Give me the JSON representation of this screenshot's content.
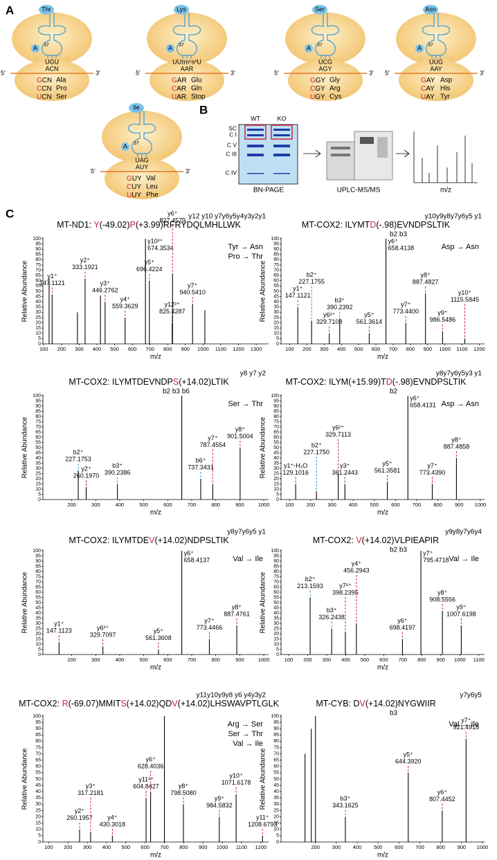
{
  "panel_labels": {
    "a": "A",
    "b": "B",
    "c": "C"
  },
  "ribosome_labels": {
    "a_site": "A",
    "position": "37",
    "five": "5′",
    "three": "3′"
  },
  "ribosomes": [
    {
      "aa": "Thr",
      "anticodon": [
        "UGU",
        "ACN"
      ],
      "codons": [
        {
          "first": "G",
          "rest": "CN",
          "aa": "Ala"
        },
        {
          "first": "C",
          "rest": "CN",
          "aa": "Pro"
        },
        {
          "first": "U",
          "rest": "CN",
          "aa": "Ser"
        }
      ]
    },
    {
      "aa": "Lys",
      "anticodon": [
        "UUτm⁵s²U",
        "AAR"
      ],
      "codons": [
        {
          "first": "G",
          "rest": "AR",
          "aa": "Glu"
        },
        {
          "first": "C",
          "rest": "AR",
          "aa": "Gln"
        },
        {
          "first": "U",
          "rest": "AR",
          "aa": "Stop"
        }
      ]
    },
    {
      "aa": "Ser",
      "anticodon": [
        "UCG",
        "AGY"
      ],
      "codons": [
        {
          "first": "G",
          "rest": "GY",
          "aa": "Gly"
        },
        {
          "first": "C",
          "rest": "GY",
          "aa": "Arg"
        },
        {
          "first": "U",
          "rest": "GY",
          "aa": "Cys"
        }
      ]
    },
    {
      "aa": "Asn",
      "anticodon": [
        "UUG",
        "AAY"
      ],
      "codons": [
        {
          "first": "G",
          "rest": "AY",
          "aa": "Asp"
        },
        {
          "first": "C",
          "rest": "AY",
          "aa": "His"
        },
        {
          "first": "U",
          "rest": "AY",
          "aa": "Tyr"
        }
      ]
    },
    {
      "aa": "Ile",
      "anticodon": [
        "UAG",
        "AUY"
      ],
      "codons": [
        {
          "first": "G",
          "rest": "UY",
          "aa": "Val"
        },
        {
          "first": "C",
          "rest": "UY",
          "aa": "Leu"
        },
        {
          "first": "U",
          "rest": "UY",
          "aa": "Phe"
        }
      ]
    }
  ],
  "workflow": {
    "wt": "WT",
    "ko": "KO",
    "bands": [
      "SC",
      "C I",
      "C V",
      "C III",
      "C IV"
    ],
    "gel": "BN-PAGE",
    "instrument": "UPLC-MS/MS",
    "spectrum": "m/z"
  },
  "axis": {
    "ylabel": "Relative Abundance",
    "xlabel": "m/z"
  },
  "colors": {
    "y": "#d2233c",
    "b": "#1e9fd6",
    "peak": "#000000"
  },
  "spectra": [
    {
      "title": [
        {
          "text": "MT-ND1: "
        },
        {
          "text": "Y",
          "red": true
        },
        {
          "text": "(-49.02)"
        },
        {
          "text": "P",
          "red": true
        },
        {
          "text": "(+3.99)RFRYDQLMHLLWK"
        }
      ],
      "y_ions": "y12 y10   y7y6y5y4y3y2y1",
      "mutations": [
        "Tyr → Asn",
        "Pro → Thr"
      ],
      "xlim": [
        95,
        1370
      ],
      "xticks": [
        100,
        200,
        300,
        400,
        500,
        600,
        700,
        800,
        900,
        1000,
        1100,
        1200,
        1300
      ],
      "ylim": [
        0,
        100
      ],
      "yticks": [
        0,
        5,
        10,
        15,
        20,
        25,
        30,
        35,
        40,
        45,
        50,
        55,
        60,
        65,
        70,
        75,
        80,
        85,
        90,
        95,
        100
      ],
      "peaks": [
        {
          "x": 130,
          "y": 62
        },
        {
          "x": 147.1121,
          "y": 47,
          "ion": "y1⁺",
          "x_label": "147.1121"
        },
        {
          "x": 290,
          "y": 30
        },
        {
          "x": 333.1921,
          "y": 62,
          "ion": "y2⁺",
          "x_label": "333.1921"
        },
        {
          "x": 420,
          "y": 46
        },
        {
          "x": 446.2762,
          "y": 40,
          "ion": "y3⁺",
          "x_label": "446.2762"
        },
        {
          "x": 559.3629,
          "y": 25,
          "ion": "y4⁺",
          "x_label": "559.3629"
        },
        {
          "x": 674.3534,
          "y": 100,
          "ion": "y10²⁺",
          "x_label": "674.3534"
        },
        {
          "x": 696.4224,
          "y": 60,
          "ion": "y5⁺",
          "x_label": "696.4224"
        },
        {
          "x": 825.4287,
          "y": 20,
          "ion": "y12²⁺",
          "x_label": "825.4287"
        },
        {
          "x": 827.4579,
          "y": 67,
          "ion": "y6⁺",
          "x_label": "827.4579"
        },
        {
          "x": 940.541,
          "y": 38,
          "ion": "y7⁺",
          "x_label": "940.5410"
        },
        {
          "x": 1010,
          "y": 32
        }
      ]
    },
    {
      "title": [
        {
          "text": "MT-COX2: ILYMT"
        },
        {
          "text": "D",
          "red": true
        },
        {
          "text": "(-.98)EVNDPSLTIK"
        }
      ],
      "y_ions": "y10y9y8y7y6y5      y1",
      "b_ions": "b2 b3",
      "mutations": [
        "Asp → Asn"
      ],
      "xlim": [
        50,
        1230
      ],
      "xticks": [
        100,
        200,
        300,
        400,
        500,
        600,
        700,
        800,
        900,
        1000,
        1100,
        1200
      ],
      "ylim": [
        0,
        100
      ],
      "yticks": [
        0,
        5,
        10,
        15,
        20,
        25,
        30,
        35,
        40,
        45,
        50,
        55,
        60,
        65,
        70,
        75,
        80,
        85,
        90,
        95,
        100
      ],
      "peaks": [
        {
          "x": 147.1121,
          "y": 35,
          "ion": "y1⁺",
          "x_label": "147.1121"
        },
        {
          "x": 227.1755,
          "y": 22,
          "ion": "b2⁺",
          "x_label": "227.1755"
        },
        {
          "x": 329.7108,
          "y": 10,
          "ion": "y6²⁺",
          "x_label": "329.7108"
        },
        {
          "x": 390.2392,
          "y": 24,
          "ion": "b3⁺",
          "x_label": "390.2392"
        },
        {
          "x": 561.3614,
          "y": 10,
          "ion": "y5⁺",
          "x_label": "561.3614"
        },
        {
          "x": 658.4138,
          "y": 100,
          "ion": "y6⁺",
          "x_label": "658.4138"
        },
        {
          "x": 773.44,
          "y": 20,
          "ion": "y7⁺",
          "x_label": "773.4400"
        },
        {
          "x": 887.4827,
          "y": 48,
          "ion": "y8⁺",
          "x_label": "887.4827"
        },
        {
          "x": 986.5486,
          "y": 12,
          "ion": "y9⁺",
          "x_label": "986.5486"
        },
        {
          "x": 1115.5845,
          "y": 5,
          "ion": "y10⁺",
          "x_label": "1115.5845"
        }
      ]
    },
    {
      "title": [
        {
          "text": "MT-COX2: ILYMTDEVNDP"
        },
        {
          "text": "S",
          "red": true
        },
        {
          "text": "(+14.02)LTIK"
        }
      ],
      "y_ions": "y8 y7          y2",
      "b_ions": "b2 b3      b6",
      "mutations": [
        "Ser → Thr"
      ],
      "xlim": [
        80,
        1020
      ],
      "xticks": [
        200,
        300,
        400,
        500,
        600,
        700,
        800,
        900,
        1000
      ],
      "ylim": [
        0,
        100
      ],
      "yticks": [
        0,
        5,
        10,
        15,
        20,
        25,
        30,
        35,
        40,
        45,
        50,
        55,
        60,
        65,
        70,
        75,
        80,
        85,
        90,
        95,
        100
      ],
      "peaks": [
        {
          "x": 227.1753,
          "y": 28,
          "ion": "b2⁺",
          "x_label": "227.1753"
        },
        {
          "x": 260.197,
          "y": 12,
          "ion": "y2⁺",
          "x_label": "260.1970"
        },
        {
          "x": 390.2386,
          "y": 15,
          "ion": "b3⁺",
          "x_label": "390.2386"
        },
        {
          "x": 658.4,
          "y": 100
        },
        {
          "x": 737.3431,
          "y": 20,
          "ion": "b6⁺",
          "x_label": "737.3431"
        },
        {
          "x": 787.4554,
          "y": 15,
          "ion": "y7⁺",
          "x_label": "787.4554"
        },
        {
          "x": 901.5004,
          "y": 50,
          "ion": "y8⁺",
          "x_label": "901.5004"
        }
      ]
    },
    {
      "title": [
        {
          "text": "MT-COX2: ILYM(+15.99)T"
        },
        {
          "text": "D",
          "red": true
        },
        {
          "text": "(-.98)EVNDPSLTIK"
        }
      ],
      "y_ions": "y8y7y6y5y3 y1",
      "b_ions": "b2",
      "mutations": [
        "Asp → Asn"
      ],
      "xlim": [
        60,
        1020
      ],
      "xticks": [
        100,
        200,
        300,
        400,
        500,
        600,
        700,
        800,
        900,
        1000
      ],
      "ylim": [
        0,
        100
      ],
      "yticks": [
        0,
        5,
        10,
        15,
        20,
        25,
        30,
        35,
        40,
        45,
        50,
        55,
        60,
        65,
        70,
        75,
        80,
        85,
        90,
        95,
        100
      ],
      "peaks": [
        {
          "x": 129.1016,
          "y": 15,
          "ion": "y1⁺-H₂O",
          "x_label": "129.1016"
        },
        {
          "x": 227.175,
          "y": 8,
          "ion": "b2⁺",
          "x_label": "227.1750"
        },
        {
          "x": 329.7113,
          "y": 25,
          "ion": "y6²⁺",
          "x_label": "329.7113"
        },
        {
          "x": 361.2443,
          "y": 15,
          "ion": "y3⁺",
          "x_label": "361.2443"
        },
        {
          "x": 561.3581,
          "y": 17,
          "ion": "y5⁺",
          "x_label": "561.3581"
        },
        {
          "x": 658.4131,
          "y": 100,
          "ion": "y6⁺",
          "x_label": "658.4131"
        },
        {
          "x": 773.439,
          "y": 15,
          "ion": "y7⁺",
          "x_label": "773.4390"
        },
        {
          "x": 887.4858,
          "y": 40,
          "ion": "y8⁺",
          "x_label": "887.4858"
        }
      ]
    },
    {
      "title": [
        {
          "text": "MT-COX2: ILYMTDE"
        },
        {
          "text": "V",
          "red": true
        },
        {
          "text": "(+14.02)NDPSLTIK"
        }
      ],
      "y_ions": "y8y7y6y5     y1",
      "mutations": [
        "Val → Ile"
      ],
      "xlim": [
        80,
        1020
      ],
      "xticks": [
        200,
        300,
        400,
        500,
        600,
        700,
        800,
        900,
        1000
      ],
      "ylim": [
        0,
        100
      ],
      "yticks": [
        0,
        5,
        10,
        15,
        20,
        25,
        30,
        35,
        40,
        45,
        50,
        55,
        60,
        65,
        70,
        75,
        80,
        85,
        90,
        95,
        100
      ],
      "peaks": [
        {
          "x": 147.1123,
          "y": 12,
          "ion": "y1⁺",
          "x_label": "147.1123"
        },
        {
          "x": 329.7097,
          "y": 8,
          "ion": "y6²⁺",
          "x_label": "329.7097"
        },
        {
          "x": 561.3608,
          "y": 5,
          "ion": "y5⁺",
          "x_label": "561.3608"
        },
        {
          "x": 658.4137,
          "y": 100,
          "ion": "y6⁺",
          "x_label": "658.4137"
        },
        {
          "x": 773.4466,
          "y": 15,
          "ion": "y7⁺",
          "x_label": "773.4466"
        },
        {
          "x": 887.4761,
          "y": 28,
          "ion": "y8⁺",
          "x_label": "887.4761"
        }
      ]
    },
    {
      "title": [
        {
          "text": "MT-COX2: "
        },
        {
          "text": "V",
          "red": true
        },
        {
          "text": "(+14.02)VLPIEAPIR"
        }
      ],
      "y_ions": "y9y8y7y6y4",
      "b_ions": "b2 b3",
      "mutations": [
        "Val → Ile"
      ],
      "xlim": [
        60,
        1130
      ],
      "xticks": [
        100,
        200,
        300,
        400,
        500,
        600,
        700,
        800,
        900,
        1000,
        1100
      ],
      "ylim": [
        0,
        100
      ],
      "yticks": [
        0,
        5,
        10,
        15,
        20,
        25,
        30,
        35,
        40,
        45,
        50,
        55,
        60,
        65,
        70,
        75,
        80,
        85,
        90,
        95,
        100
      ],
      "peaks": [
        {
          "x": 213.1593,
          "y": 55,
          "ion": "b2⁺",
          "x_label": "213.1593"
        },
        {
          "x": 326.2438,
          "y": 25,
          "ion": "b3⁺",
          "x_label": "326.2438"
        },
        {
          "x": 398.2395,
          "y": 22,
          "ion": "y7²⁺",
          "x_label": "398.2395"
        },
        {
          "x": 456.2943,
          "y": 30,
          "ion": "y4⁺",
          "x_label": "456.2943"
        },
        {
          "x": 698.4197,
          "y": 15,
          "ion": "y6⁺",
          "x_label": "698.4197"
        },
        {
          "x": 795.4718,
          "y": 100,
          "ion": "y7⁺",
          "x_label": "795.4718"
        },
        {
          "x": 908.5556,
          "y": 42,
          "ion": "y8⁺",
          "x_label": "908.5556"
        },
        {
          "x": 1007.6198,
          "y": 28,
          "ion": "y9⁺",
          "x_label": "1007.6198"
        }
      ]
    },
    {
      "title": [
        {
          "text": "MT-COX2: "
        },
        {
          "text": "R",
          "red": true
        },
        {
          "text": "(-69.07)MMIT"
        },
        {
          "text": "S",
          "red": true
        },
        {
          "text": "(+14.02)QD"
        },
        {
          "text": "V",
          "red": true
        },
        {
          "text": "(+14.02)LHSWAVPTLGLK"
        }
      ],
      "y_ions": "y11y10y9y8 y6  y4y3y2",
      "mutations": [
        "Arg → Ser",
        "Ser → Thr",
        "Val → Ile"
      ],
      "xlim": [
        70,
        1240
      ],
      "xticks": [
        100,
        200,
        300,
        400,
        500,
        600,
        700,
        800,
        900,
        1000,
        1100,
        1200
      ],
      "ylim": [
        0,
        100
      ],
      "yticks": [
        0,
        5,
        10,
        15,
        20,
        25,
        30,
        35,
        40,
        45,
        50,
        55,
        60,
        65,
        70,
        75,
        80,
        85,
        90,
        95,
        100
      ],
      "peaks": [
        {
          "x": 260.1957,
          "y": 10,
          "ion": "y2⁺",
          "x_label": "260.1957"
        },
        {
          "x": 317.2181,
          "y": 8,
          "ion": "y3⁺",
          "x_label": "317.2181"
        },
        {
          "x": 430.3018,
          "y": 5,
          "ion": "y4⁺",
          "x_label": "430.3018"
        },
        {
          "x": 604.8427,
          "y": 35,
          "ion": "y11²⁺",
          "x_label": "604.8427"
        },
        {
          "x": 628.4036,
          "y": 40,
          "ion": "y6⁺",
          "x_label": "628.4036"
        },
        {
          "x": 700,
          "y": 100
        },
        {
          "x": 798.508,
          "y": 30,
          "ion": "y8⁺",
          "x_label": "798.5080"
        },
        {
          "x": 984.5832,
          "y": 20,
          "ion": "y9⁺",
          "x_label": "984.5832"
        },
        {
          "x": 1071.6178,
          "y": 38,
          "ion": "y10⁺",
          "x_label": "1071.6178"
        },
        {
          "x": 1208.6793,
          "y": 5,
          "ion": "y11⁺",
          "x_label": "1208.6793"
        }
      ]
    },
    {
      "title": [
        {
          "text": "MT-CYB: D"
        },
        {
          "text": "V",
          "red": true
        },
        {
          "text": "(+14.02)NYGWIIR"
        }
      ],
      "y_ions": "y7y6y5",
      "b_ions": "b3",
      "mutations": [
        "Val → Ile"
      ],
      "xlim": [
        35,
        1010
      ],
      "xticks": [
        200,
        300,
        400,
        500,
        600,
        700,
        800,
        900,
        1000
      ],
      "ylim": [
        0,
        100
      ],
      "yticks": [
        0,
        5,
        10,
        15,
        20,
        25,
        30,
        35,
        40,
        45,
        50,
        55,
        60,
        65,
        70,
        75,
        80,
        85,
        90,
        95,
        100
      ],
      "peaks": [
        {
          "x": 150,
          "y": 70
        },
        {
          "x": 180,
          "y": 90
        },
        {
          "x": 200,
          "y": 100
        },
        {
          "x": 343.1625,
          "y": 20,
          "ion": "b3⁺",
          "x_label": "343.1625"
        },
        {
          "x": 644.392,
          "y": 55,
          "ion": "y5⁺",
          "x_label": "644.3920"
        },
        {
          "x": 807.4452,
          "y": 25,
          "ion": "y6⁺",
          "x_label": "807.4452"
        },
        {
          "x": 921.4918,
          "y": 82,
          "ion": "y7⁺",
          "x_label": "921.4918"
        }
      ]
    }
  ]
}
